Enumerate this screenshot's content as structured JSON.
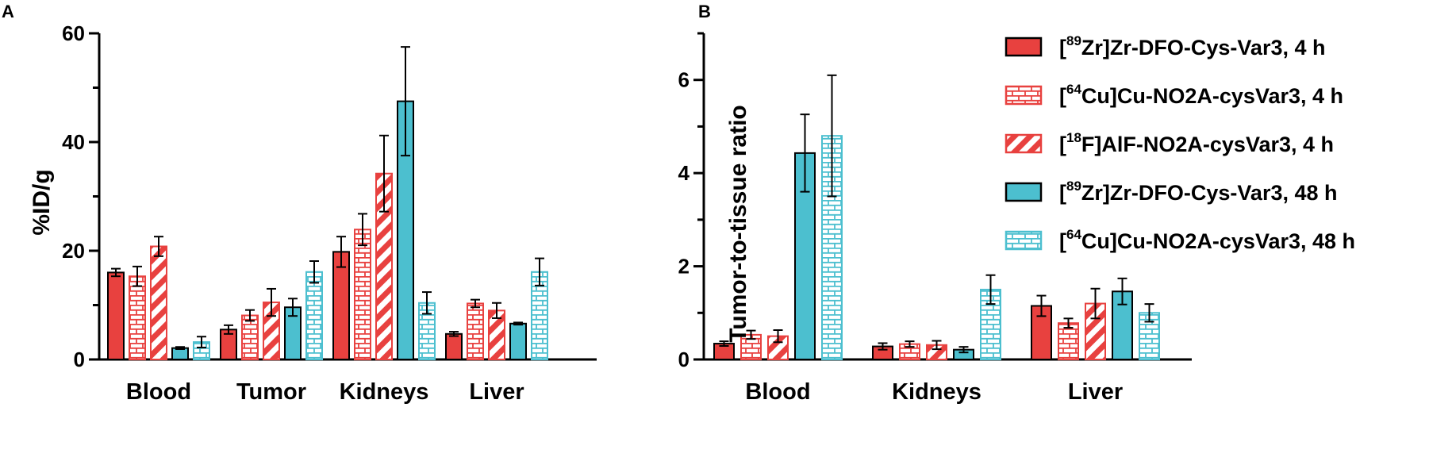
{
  "series_styles": [
    {
      "key": "zr4",
      "fill": "#e8413f",
      "stroke": "#000000",
      "pattern": "solid"
    },
    {
      "key": "cu4",
      "fill": "#ffffff",
      "stroke": "#e8413f",
      "pattern": "brick"
    },
    {
      "key": "f4",
      "fill": "#ffffff",
      "stroke": "#e8413f",
      "pattern": "stripe"
    },
    {
      "key": "zr48",
      "fill": "#4cbfcf",
      "stroke": "#000000",
      "pattern": "solid"
    },
    {
      "key": "cu48",
      "fill": "#ffffff",
      "stroke": "#4cbfcf",
      "pattern": "brick"
    }
  ],
  "legend": [
    {
      "pre": "[",
      "sup": "89",
      "post": "Zr]Zr-DFO-Cys-Var3, 4 h"
    },
    {
      "pre": "[",
      "sup": "64",
      "post": "Cu]Cu-NO2A-cysVar3, 4 h"
    },
    {
      "pre": "[",
      "sup": "18",
      "post": "F]AlF-NO2A-cysVar3, 4 h"
    },
    {
      "pre": "[",
      "sup": "89",
      "post": "Zr]Zr-DFO-Cys-Var3, 48 h"
    },
    {
      "pre": "[",
      "sup": "64",
      "post": "Cu]Cu-NO2A-cysVar3, 48 h"
    }
  ],
  "chart_data": [
    {
      "panel": "A",
      "type": "bar",
      "ylabel": "%ID/g",
      "xlabel": "",
      "ylim": [
        0,
        60
      ],
      "yticks": [
        0,
        20,
        40,
        60
      ],
      "categories": [
        "Blood",
        "Tumor",
        "Kidneys",
        "Liver"
      ],
      "series": [
        {
          "name": "[89Zr]Zr-DFO-Cys-Var3, 4 h",
          "values": [
            16.0,
            5.5,
            19.8,
            4.7
          ],
          "errors": [
            0.7,
            0.8,
            2.8,
            0.4
          ]
        },
        {
          "name": "[64Cu]Cu-NO2A-cysVar3, 4 h",
          "values": [
            15.3,
            8.1,
            23.9,
            10.3
          ],
          "errors": [
            1.8,
            1.0,
            2.9,
            0.7
          ]
        },
        {
          "name": "[18F]AlF-NO2A-cysVar3, 4 h",
          "values": [
            20.8,
            10.5,
            34.2,
            9.0
          ],
          "errors": [
            1.8,
            2.5,
            7.0,
            1.4
          ]
        },
        {
          "name": "[89Zr]Zr-DFO-Cys-Var3, 48 h",
          "values": [
            2.1,
            9.6,
            47.5,
            6.6
          ],
          "errors": [
            0.2,
            1.6,
            10.0,
            0.2
          ]
        },
        {
          "name": "[64Cu]Cu-NO2A-cysVar3, 48 h",
          "values": [
            3.2,
            16.1,
            10.4,
            16.1
          ],
          "errors": [
            1.0,
            2.0,
            2.0,
            2.5
          ]
        }
      ]
    },
    {
      "panel": "B",
      "type": "bar",
      "ylabel": "Tumor-to-tissue ratio",
      "xlabel": "",
      "ylim": [
        0,
        7
      ],
      "yticks": [
        0,
        2,
        4,
        6
      ],
      "categories": [
        "Blood",
        "Kidneys",
        "Liver"
      ],
      "series": [
        {
          "name": "[89Zr]Zr-DFO-Cys-Var3, 4 h",
          "values": [
            0.34,
            0.28,
            1.15
          ],
          "errors": [
            0.05,
            0.07,
            0.22
          ]
        },
        {
          "name": "[64Cu]Cu-NO2A-cysVar3, 4 h",
          "values": [
            0.53,
            0.33,
            0.78
          ],
          "errors": [
            0.09,
            0.06,
            0.1
          ]
        },
        {
          "name": "[18F]AlF-NO2A-cysVar3, 4 h",
          "values": [
            0.5,
            0.31,
            1.2
          ],
          "errors": [
            0.13,
            0.09,
            0.32
          ]
        },
        {
          "name": "[89Zr]Zr-DFO-Cys-Var3, 48 h",
          "values": [
            4.43,
            0.21,
            1.46
          ],
          "errors": [
            0.83,
            0.06,
            0.28
          ]
        },
        {
          "name": "[64Cu]Cu-NO2A-cysVar3, 48 h",
          "values": [
            4.8,
            1.5,
            1.0
          ],
          "errors": [
            1.3,
            0.31,
            0.19
          ]
        }
      ]
    }
  ]
}
